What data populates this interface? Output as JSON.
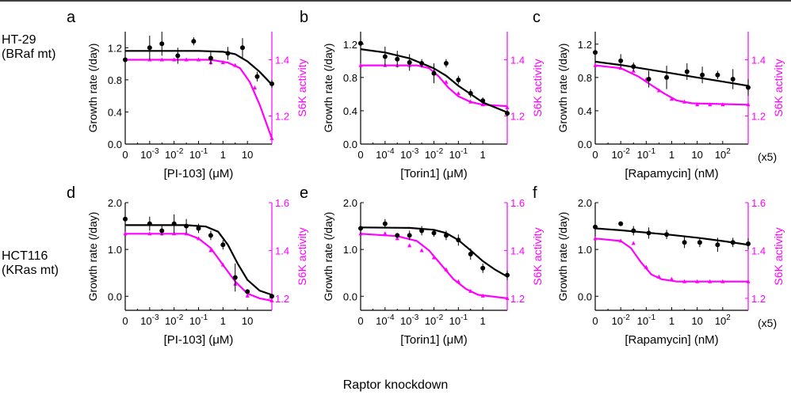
{
  "figure": {
    "bottom_caption": "Raptor knockdown",
    "rows": [
      {
        "line1": "HT-29",
        "line2": "(BRaf mt)"
      },
      {
        "line1": "HCT116",
        "line2": "(KRas mt)"
      }
    ],
    "colors": {
      "growth": "#000000",
      "s6k": "#ff00ff"
    },
    "scale_note": "(x5)"
  },
  "chart_data": [
    {
      "type": "line",
      "panel_label": "a",
      "xlabel": "[PI-103] (μM)",
      "x_ticks": [
        {
          "label": "0"
        },
        {
          "base": "10",
          "exp": "-3"
        },
        {
          "base": "10",
          "exp": "-2"
        },
        {
          "base": "10",
          "exp": "-1"
        },
        {
          "label": "1"
        },
        {
          "label": "10"
        }
      ],
      "ylabel": "Growth rate (/day)",
      "ylim": [
        0,
        1.4
      ],
      "yticks": [
        "0.0",
        "0.4",
        "0.8",
        "1.2"
      ],
      "y2label": "S6K activity",
      "y2lim": [
        1.1,
        1.5
      ],
      "y2ticks": [
        "1.2",
        "1.4"
      ],
      "growth_points": [
        [
          0,
          1.05,
          0.1
        ],
        [
          1,
          1.2,
          0.15
        ],
        [
          1.5,
          1.25,
          0.15
        ],
        [
          2.15,
          1.1,
          0.1
        ],
        [
          2.8,
          1.28,
          0.05
        ],
        [
          3.5,
          1.07,
          0.08
        ],
        [
          4.2,
          1.13,
          0.08
        ],
        [
          4.8,
          1.2,
          0.12
        ],
        [
          5.4,
          0.84,
          0.06
        ],
        [
          6.0,
          0.75,
          0.05
        ]
      ],
      "growth_curve": [
        [
          0,
          1.16
        ],
        [
          3,
          1.16
        ],
        [
          4,
          1.15
        ],
        [
          4.5,
          1.12
        ],
        [
          5,
          1.03
        ],
        [
          5.5,
          0.9
        ],
        [
          6,
          0.74
        ]
      ],
      "s6k_points": [
        [
          0,
          1.4
        ],
        [
          1,
          1.4
        ],
        [
          1.5,
          1.4
        ],
        [
          2,
          1.4
        ],
        [
          2.5,
          1.4
        ],
        [
          3,
          1.4
        ],
        [
          3.5,
          1.39
        ],
        [
          4,
          1.39
        ],
        [
          4.5,
          1.38
        ],
        [
          5.3,
          1.3
        ],
        [
          6,
          1.12
        ]
      ],
      "s6k_curve": [
        [
          0,
          1.4
        ],
        [
          3.5,
          1.4
        ],
        [
          4.2,
          1.39
        ],
        [
          4.7,
          1.37
        ],
        [
          5.1,
          1.32
        ],
        [
          5.5,
          1.24
        ],
        [
          6,
          1.12
        ]
      ],
      "x_note": ""
    },
    {
      "type": "line",
      "panel_label": "b",
      "xlabel": "[Torin1] (μM)",
      "x_ticks": [
        {
          "label": "0"
        },
        {
          "base": "10",
          "exp": "-4"
        },
        {
          "base": "10",
          "exp": "-3"
        },
        {
          "base": "10",
          "exp": "-2"
        },
        {
          "base": "10",
          "exp": "-1"
        },
        {
          "label": "1"
        }
      ],
      "ylabel": "Growth rate (/day)",
      "ylim": [
        0,
        1.35
      ],
      "yticks": [
        "0.0",
        "0.4",
        "0.8",
        "1.2"
      ],
      "y2label": "S6K activity",
      "y2lim": [
        1.1,
        1.5
      ],
      "y2ticks": [
        "1.2",
        "1.4"
      ],
      "growth_points": [
        [
          0,
          1.21,
          0.08
        ],
        [
          1,
          1.05,
          0.12
        ],
        [
          1.5,
          1.02,
          0.1
        ],
        [
          2,
          0.98,
          0.1
        ],
        [
          2.5,
          0.97,
          0.05
        ],
        [
          3,
          0.85,
          0.12
        ],
        [
          3.5,
          0.97,
          0.05
        ],
        [
          4,
          0.77,
          0.05
        ],
        [
          4.5,
          0.61,
          0.05
        ],
        [
          5,
          0.52,
          0.04
        ],
        [
          6,
          0.37,
          0.04
        ]
      ],
      "growth_curve": [
        [
          0,
          1.14
        ],
        [
          1,
          1.1
        ],
        [
          2,
          1.03
        ],
        [
          3,
          0.91
        ],
        [
          3.5,
          0.82
        ],
        [
          4,
          0.7
        ],
        [
          4.5,
          0.6
        ],
        [
          5,
          0.5
        ],
        [
          6,
          0.38
        ]
      ],
      "s6k_points": [
        [
          0,
          1.38
        ],
        [
          1,
          1.38
        ],
        [
          1.5,
          1.38
        ],
        [
          2,
          1.38
        ],
        [
          2.5,
          1.38
        ],
        [
          3,
          1.36
        ],
        [
          3.5,
          1.32
        ],
        [
          4,
          1.28
        ],
        [
          4.5,
          1.25
        ],
        [
          5,
          1.24
        ],
        [
          6,
          1.23
        ]
      ],
      "s6k_curve": [
        [
          0,
          1.38
        ],
        [
          2.3,
          1.38
        ],
        [
          2.8,
          1.37
        ],
        [
          3.2,
          1.34
        ],
        [
          3.6,
          1.3
        ],
        [
          4,
          1.27
        ],
        [
          4.5,
          1.25
        ],
        [
          5,
          1.24
        ],
        [
          6,
          1.235
        ]
      ],
      "x_note": ""
    },
    {
      "type": "line",
      "panel_label": "c",
      "xlabel": "[Rapamycin] (nM)",
      "x_ticks": [
        {
          "label": "0"
        },
        {
          "base": "10",
          "exp": "-2"
        },
        {
          "base": "10",
          "exp": "-1"
        },
        {
          "label": "1"
        },
        {
          "label": "10"
        },
        {
          "base": "10",
          "exp": "2"
        }
      ],
      "ylabel": "Growth rate (/day)",
      "ylim": [
        0,
        1.35
      ],
      "yticks": [
        "0.0",
        "0.4",
        "0.8",
        "1.2"
      ],
      "y2label": "S6K activity",
      "y2lim": [
        1.1,
        1.5
      ],
      "y2ticks": [
        "1.2",
        "1.4"
      ],
      "growth_points": [
        [
          0,
          1.1,
          0.08
        ],
        [
          1,
          1.0,
          0.08
        ],
        [
          1.5,
          0.93,
          0.05
        ],
        [
          2.1,
          0.78,
          0.1
        ],
        [
          2.8,
          0.8,
          0.14
        ],
        [
          3.6,
          0.87,
          0.1
        ],
        [
          4.2,
          0.83,
          0.1
        ],
        [
          4.8,
          0.83,
          0.05
        ],
        [
          5.4,
          0.78,
          0.12
        ],
        [
          6,
          0.68,
          0.1
        ]
      ],
      "growth_curve": [
        [
          0,
          0.99
        ],
        [
          1,
          0.95
        ],
        [
          2,
          0.9
        ],
        [
          3,
          0.85
        ],
        [
          4,
          0.8
        ],
        [
          5,
          0.75
        ],
        [
          6,
          0.7
        ]
      ],
      "s6k_points": [
        [
          0,
          1.38
        ],
        [
          1,
          1.37
        ],
        [
          1.5,
          1.36
        ],
        [
          2,
          1.33
        ],
        [
          2.5,
          1.29
        ],
        [
          3,
          1.26
        ],
        [
          3.5,
          1.25
        ],
        [
          4,
          1.24
        ],
        [
          4.5,
          1.24
        ],
        [
          5,
          1.24
        ],
        [
          6,
          1.24
        ]
      ],
      "s6k_curve": [
        [
          0,
          1.38
        ],
        [
          1,
          1.37
        ],
        [
          1.7,
          1.34
        ],
        [
          2.2,
          1.31
        ],
        [
          2.7,
          1.28
        ],
        [
          3.2,
          1.255
        ],
        [
          3.8,
          1.245
        ],
        [
          6,
          1.24
        ]
      ],
      "x_note": "(x5)"
    },
    {
      "type": "line",
      "panel_label": "d",
      "xlabel": "[PI-103] (μM)",
      "x_ticks": [
        {
          "label": "0"
        },
        {
          "base": "10",
          "exp": "-3"
        },
        {
          "base": "10",
          "exp": "-2"
        },
        {
          "base": "10",
          "exp": "-1"
        },
        {
          "label": "1"
        },
        {
          "label": "10"
        }
      ],
      "ylabel": "Growth rate (/day)",
      "ylim": [
        -0.3,
        2.0
      ],
      "yticks": [
        "0.0",
        "1.0",
        "2.0"
      ],
      "y2label": "S6K activity",
      "y2lim": [
        1.15,
        1.6
      ],
      "y2ticks": [
        "1.2",
        "1.4",
        "1.6"
      ],
      "growth_points": [
        [
          0,
          1.65,
          0.15
        ],
        [
          1,
          1.55,
          0.15
        ],
        [
          1.5,
          1.4,
          0.1
        ],
        [
          2,
          1.55,
          0.2
        ],
        [
          2.5,
          1.5,
          0.15
        ],
        [
          3,
          1.45,
          0.1
        ],
        [
          3.5,
          1.3,
          0.1
        ],
        [
          4,
          1.1,
          0.1
        ],
        [
          4.5,
          0.4,
          0.3
        ],
        [
          5,
          0.1,
          0.05
        ],
        [
          6,
          0.0,
          0.05
        ]
      ],
      "growth_curve": [
        [
          0,
          1.52
        ],
        [
          2.5,
          1.52
        ],
        [
          3.3,
          1.49
        ],
        [
          3.8,
          1.38
        ],
        [
          4.2,
          1.1
        ],
        [
          4.6,
          0.7
        ],
        [
          5,
          0.35
        ],
        [
          5.5,
          0.12
        ],
        [
          6,
          0.03
        ]
      ],
      "s6k_points": [
        [
          0,
          1.47
        ],
        [
          1,
          1.47
        ],
        [
          1.5,
          1.47
        ],
        [
          2,
          1.47
        ],
        [
          2.5,
          1.47
        ],
        [
          3,
          1.45
        ],
        [
          3.5,
          1.4
        ],
        [
          4,
          1.34
        ],
        [
          4.5,
          1.26
        ],
        [
          5,
          1.21
        ],
        [
          6,
          1.19
        ]
      ],
      "s6k_curve": [
        [
          0,
          1.47
        ],
        [
          2.5,
          1.47
        ],
        [
          3.0,
          1.45
        ],
        [
          3.5,
          1.41
        ],
        [
          4,
          1.34
        ],
        [
          4.5,
          1.27
        ],
        [
          5,
          1.22
        ],
        [
          5.5,
          1.2
        ],
        [
          6,
          1.19
        ]
      ],
      "x_note": ""
    },
    {
      "type": "line",
      "panel_label": "e",
      "xlabel": "[Torin1] (μM)",
      "x_ticks": [
        {
          "label": "0"
        },
        {
          "base": "10",
          "exp": "-4"
        },
        {
          "base": "10",
          "exp": "-3"
        },
        {
          "base": "10",
          "exp": "-2"
        },
        {
          "base": "10",
          "exp": "-1"
        },
        {
          "label": "1"
        }
      ],
      "ylabel": "Growth rate (/day)",
      "ylim": [
        -0.3,
        2.0
      ],
      "yticks": [
        "0.0",
        "1.0",
        "2.0"
      ],
      "y2label": "S6K activity",
      "y2lim": [
        1.15,
        1.6
      ],
      "y2ticks": [
        "1.2",
        "1.4",
        "1.6"
      ],
      "growth_points": [
        [
          0,
          1.45,
          0.12
        ],
        [
          1,
          1.55,
          0.1
        ],
        [
          1.5,
          1.3,
          0.05
        ],
        [
          2,
          1.3,
          0.1
        ],
        [
          2.5,
          1.4,
          0.1
        ],
        [
          3,
          1.35,
          0.08
        ],
        [
          3.5,
          1.3,
          0.1
        ],
        [
          4,
          1.2,
          0.12
        ],
        [
          4.5,
          0.9,
          0.12
        ],
        [
          5,
          0.6,
          0.1
        ],
        [
          6,
          0.45,
          0.1
        ]
      ],
      "growth_curve": [
        [
          0,
          1.47
        ],
        [
          2,
          1.46
        ],
        [
          3,
          1.42
        ],
        [
          3.5,
          1.35
        ],
        [
          4,
          1.2
        ],
        [
          4.5,
          0.98
        ],
        [
          5,
          0.75
        ],
        [
          5.5,
          0.57
        ],
        [
          6,
          0.42
        ]
      ],
      "s6k_points": [
        [
          0,
          1.47
        ],
        [
          1,
          1.47
        ],
        [
          1.5,
          1.45
        ],
        [
          2,
          1.42
        ],
        [
          2.5,
          1.4
        ],
        [
          3,
          1.37
        ],
        [
          3.5,
          1.32
        ],
        [
          4,
          1.27
        ],
        [
          4.5,
          1.23
        ],
        [
          5,
          1.21
        ],
        [
          6,
          1.2
        ]
      ],
      "s6k_curve": [
        [
          0,
          1.47
        ],
        [
          1.5,
          1.46
        ],
        [
          2.3,
          1.44
        ],
        [
          2.8,
          1.4
        ],
        [
          3.3,
          1.34
        ],
        [
          3.8,
          1.28
        ],
        [
          4.3,
          1.24
        ],
        [
          4.8,
          1.215
        ],
        [
          6,
          1.2
        ]
      ],
      "x_note": ""
    },
    {
      "type": "line",
      "panel_label": "f",
      "xlabel": "[Rapamycin] (nM)",
      "x_ticks": [
        {
          "label": "0"
        },
        {
          "base": "10",
          "exp": "-2"
        },
        {
          "base": "10",
          "exp": "-1"
        },
        {
          "label": "1"
        },
        {
          "label": "10"
        },
        {
          "base": "10",
          "exp": "2"
        }
      ],
      "ylabel": "Growth rate (/day)",
      "ylim": [
        -0.3,
        2.0
      ],
      "yticks": [
        "0.0",
        "1.0",
        "2.0"
      ],
      "y2label": "S6K activity",
      "y2lim": [
        1.15,
        1.6
      ],
      "y2ticks": [
        "1.2",
        "1.4",
        "1.6"
      ],
      "growth_points": [
        [
          0,
          1.48,
          0.12
        ],
        [
          1,
          1.55,
          0.05
        ],
        [
          1.5,
          1.4,
          0.1
        ],
        [
          2.1,
          1.35,
          0.12
        ],
        [
          2.8,
          1.32,
          0.1
        ],
        [
          3.5,
          1.15,
          0.12
        ],
        [
          4.1,
          1.15,
          0.1
        ],
        [
          4.8,
          1.1,
          0.15
        ],
        [
          5.4,
          1.15,
          0.1
        ],
        [
          6,
          1.12,
          0.12
        ]
      ],
      "growth_curve": [
        [
          0,
          1.45
        ],
        [
          1,
          1.41
        ],
        [
          2,
          1.36
        ],
        [
          3,
          1.31
        ],
        [
          4,
          1.25
        ],
        [
          5,
          1.18
        ],
        [
          6,
          1.1
        ]
      ],
      "s6k_points": [
        [
          0,
          1.45
        ],
        [
          1,
          1.44
        ],
        [
          1.5,
          1.43
        ],
        [
          2,
          1.33
        ],
        [
          2.5,
          1.29
        ],
        [
          3,
          1.28
        ],
        [
          3.5,
          1.27
        ],
        [
          4,
          1.27
        ],
        [
          4.5,
          1.27
        ],
        [
          5,
          1.27
        ],
        [
          6,
          1.27
        ]
      ],
      "s6k_curve": [
        [
          0,
          1.45
        ],
        [
          1,
          1.44
        ],
        [
          1.4,
          1.41
        ],
        [
          1.8,
          1.35
        ],
        [
          2.2,
          1.3
        ],
        [
          2.6,
          1.28
        ],
        [
          3.2,
          1.27
        ],
        [
          6,
          1.27
        ]
      ],
      "x_note": "(x5)"
    }
  ]
}
